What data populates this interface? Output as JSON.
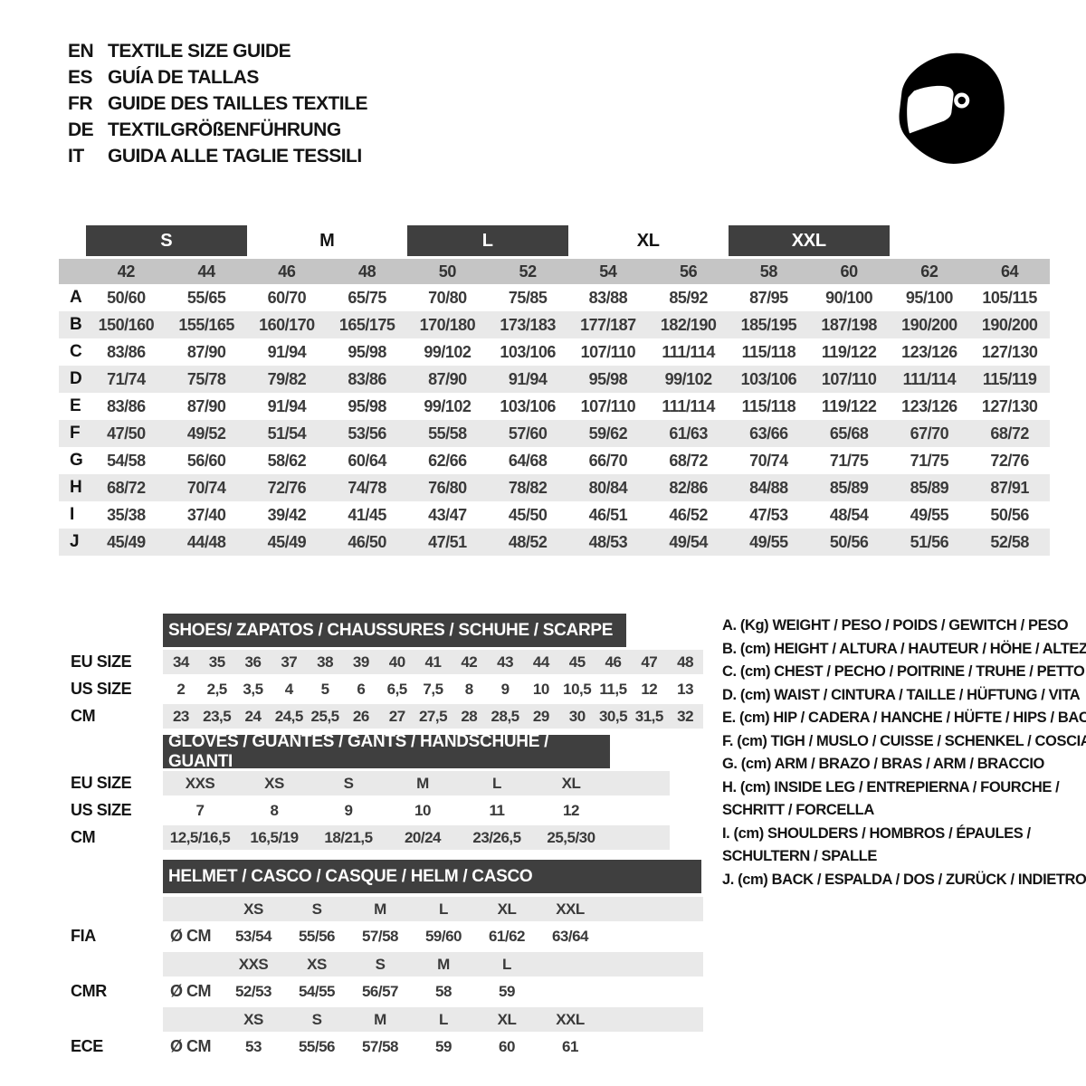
{
  "header": {
    "languages": [
      {
        "code": "EN",
        "title": "TEXTILE SIZE GUIDE"
      },
      {
        "code": "ES",
        "title": "GUÍA DE TALLAS"
      },
      {
        "code": "FR",
        "title": "GUIDE DES TAILLES TEXTILE"
      },
      {
        "code": "DE",
        "title": "TEXTILGRÖßENFÜHRUNG"
      },
      {
        "code": "IT",
        "title": "GUIDA ALLE TAGLIE TESSILI"
      }
    ],
    "logo_icon": "racing-helmet-icon"
  },
  "colors": {
    "dark_bar": "#3f3f3f",
    "header_band": "#c5c5c5",
    "stripe": "#e9e9e9"
  },
  "main_table": {
    "size_groups": [
      {
        "label": "S",
        "dark": true
      },
      {
        "label": "M",
        "dark": false
      },
      {
        "label": "L",
        "dark": true
      },
      {
        "label": "XL",
        "dark": false
      },
      {
        "label": "XXL",
        "dark": true
      }
    ],
    "columns": [
      "42",
      "44",
      "46",
      "48",
      "50",
      "52",
      "54",
      "56",
      "58",
      "60",
      "62",
      "64"
    ],
    "rows": [
      {
        "label": "A",
        "values": [
          "50/60",
          "55/65",
          "60/70",
          "65/75",
          "70/80",
          "75/85",
          "83/88",
          "85/92",
          "87/95",
          "90/100",
          "95/100",
          "105/115"
        ]
      },
      {
        "label": "B",
        "values": [
          "150/160",
          "155/165",
          "160/170",
          "165/175",
          "170/180",
          "173/183",
          "177/187",
          "182/190",
          "185/195",
          "187/198",
          "190/200",
          "190/200"
        ]
      },
      {
        "label": "C",
        "values": [
          "83/86",
          "87/90",
          "91/94",
          "95/98",
          "99/102",
          "103/106",
          "107/110",
          "111/114",
          "115/118",
          "119/122",
          "123/126",
          "127/130"
        ]
      },
      {
        "label": "D",
        "values": [
          "71/74",
          "75/78",
          "79/82",
          "83/86",
          "87/90",
          "91/94",
          "95/98",
          "99/102",
          "103/106",
          "107/110",
          "111/114",
          "115/119"
        ]
      },
      {
        "label": "E",
        "values": [
          "83/86",
          "87/90",
          "91/94",
          "95/98",
          "99/102",
          "103/106",
          "107/110",
          "111/114",
          "115/118",
          "119/122",
          "123/126",
          "127/130"
        ]
      },
      {
        "label": "F",
        "values": [
          "47/50",
          "49/52",
          "51/54",
          "53/56",
          "55/58",
          "57/60",
          "59/62",
          "61/63",
          "63/66",
          "65/68",
          "67/70",
          "68/72"
        ]
      },
      {
        "label": "G",
        "values": [
          "54/58",
          "56/60",
          "58/62",
          "60/64",
          "62/66",
          "64/68",
          "66/70",
          "68/72",
          "70/74",
          "71/75",
          "71/75",
          "72/76"
        ]
      },
      {
        "label": "H",
        "values": [
          "68/72",
          "70/74",
          "72/76",
          "74/78",
          "76/80",
          "78/82",
          "80/84",
          "82/86",
          "84/88",
          "85/89",
          "85/89",
          "87/91"
        ]
      },
      {
        "label": "I",
        "values": [
          "35/38",
          "37/40",
          "39/42",
          "41/45",
          "43/47",
          "45/50",
          "46/51",
          "46/52",
          "47/53",
          "48/54",
          "49/55",
          "50/56"
        ]
      },
      {
        "label": "J",
        "values": [
          "45/49",
          "44/48",
          "45/49",
          "46/50",
          "47/51",
          "48/52",
          "48/53",
          "49/54",
          "49/55",
          "50/56",
          "51/56",
          "52/58"
        ]
      }
    ]
  },
  "shoes": {
    "title": "SHOES/ ZAPATOS / CHAUSSURES / SCHUHE / SCARPE",
    "rows": [
      {
        "label": "EU SIZE",
        "values": [
          "34",
          "35",
          "36",
          "37",
          "38",
          "39",
          "40",
          "41",
          "42",
          "43",
          "44",
          "45",
          "46",
          "47",
          "48"
        ]
      },
      {
        "label": "US SIZE",
        "values": [
          "2",
          "2,5",
          "3,5",
          "4",
          "5",
          "6",
          "6,5",
          "7,5",
          "8",
          "9",
          "10",
          "10,5",
          "11,5",
          "12",
          "13"
        ]
      },
      {
        "label": "CM",
        "values": [
          "23",
          "23,5",
          "24",
          "24,5",
          "25,5",
          "26",
          "27",
          "27,5",
          "28",
          "28,5",
          "29",
          "30",
          "30,5",
          "31,5",
          "32"
        ]
      }
    ]
  },
  "gloves": {
    "title": "GLOVES / GUANTES / GANTS / HANDSCHUHE / GUANTI",
    "rows": [
      {
        "label": "EU SIZE",
        "values": [
          "XXS",
          "XS",
          "S",
          "M",
          "L",
          "XL"
        ]
      },
      {
        "label": "US SIZE",
        "values": [
          "7",
          "8",
          "9",
          "10",
          "11",
          "12"
        ]
      },
      {
        "label": "CM",
        "values": [
          "12,5/16,5",
          "16,5/19",
          "18/21,5",
          "20/24",
          "23/26,5",
          "25,5/30"
        ]
      }
    ]
  },
  "helmet": {
    "title": "HELMET / CASCO / CASQUE / HELM / CASCO",
    "groups": [
      {
        "label": "FIA",
        "unit": "Ø CM",
        "sizes": [
          "XS",
          "S",
          "M",
          "L",
          "XL",
          "XXL"
        ],
        "values": [
          "53/54",
          "55/56",
          "57/58",
          "59/60",
          "61/62",
          "63/64"
        ]
      },
      {
        "label": "CMR",
        "unit": "Ø CM",
        "sizes": [
          "XXS",
          "XS",
          "S",
          "M",
          "L",
          ""
        ],
        "values": [
          "52/53",
          "54/55",
          "56/57",
          "58",
          "59",
          ""
        ]
      },
      {
        "label": "ECE",
        "unit": "Ø CM",
        "sizes": [
          "XS",
          "S",
          "M",
          "L",
          "XL",
          "XXL"
        ],
        "values": [
          "53",
          "55/56",
          "57/58",
          "59",
          "60",
          "61"
        ]
      }
    ]
  },
  "legend": {
    "items": [
      {
        "lines": [
          "A. (Kg) WEIGHT / PESO / POIDS / GEWITCH / PESO"
        ]
      },
      {
        "lines": [
          "B. (cm) HEIGHT / ALTURA / HAUTEUR / HÖHE / ALTEZZA"
        ]
      },
      {
        "lines": [
          "C. (cm) CHEST / PECHO / POITRINE / TRUHE / PETTO"
        ]
      },
      {
        "lines": [
          "D. (cm) WAIST / CINTURA / TAILLE / HÜFTUNG / VITA"
        ]
      },
      {
        "lines": [
          "E. (cm) HIP / CADERA / HANCHE / HÜFTE / HIPS /  BACINO"
        ]
      },
      {
        "lines": [
          "F. (cm) TIGH / MUSLO / CUISSE / SCHENKEL / COSCIA"
        ]
      },
      {
        "lines": [
          "G. (cm) ARM  / BRAZO / BRAS / ARM / BRACCIO"
        ]
      },
      {
        "lines": [
          "H. (cm) INSIDE LEG / ENTREPIERNA / FOURCHE /",
          "SCHRITT / FORCELLA"
        ]
      },
      {
        "lines": [
          "I.  (cm) SHOULDERS / HOMBROS / ÉPAULES /",
          "SCHULTERN / SPALLE"
        ]
      },
      {
        "lines": [
          "J. (cm) BACK / ESPALDA / DOS / ZURÜCK / INDIETRO"
        ]
      }
    ]
  }
}
